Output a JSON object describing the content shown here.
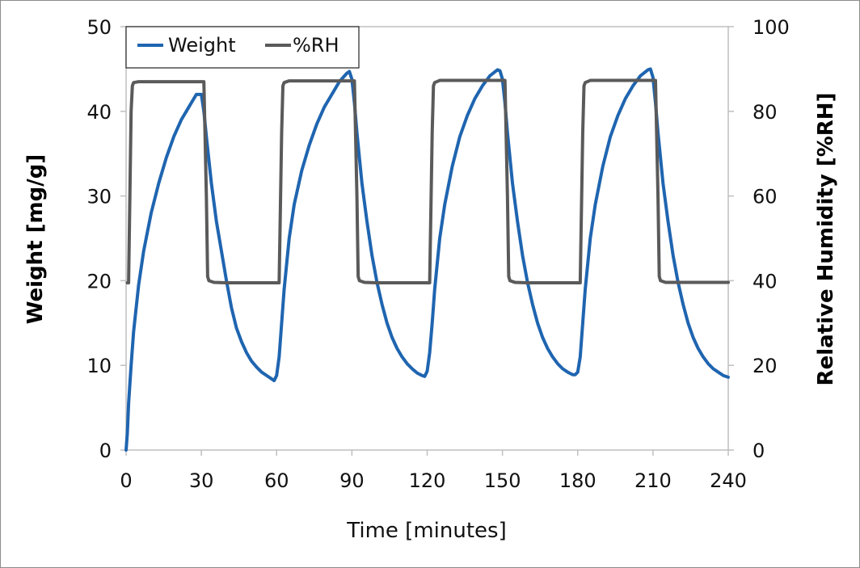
{
  "chart_data": {
    "type": "line",
    "title": "",
    "xlabel": "Time [minutes]",
    "ylabel": "Weight [mg/g]",
    "y2label": "Relative Humidity [%RH]",
    "xlim": [
      0,
      240
    ],
    "ylim": [
      0,
      50
    ],
    "y2lim": [
      0,
      100
    ],
    "xticks": [
      "0",
      "30",
      "60",
      "90",
      "120",
      "150",
      "180",
      "210",
      "240"
    ],
    "yticks": [
      "0",
      "10",
      "20",
      "30",
      "40",
      "50"
    ],
    "y2ticks": [
      "0",
      "20",
      "40",
      "60",
      "80",
      "100"
    ],
    "legend_position": "top-left",
    "grid": false,
    "series": [
      {
        "name": "Weight",
        "axis": "left",
        "color": "#1f65b0",
        "x": [
          0,
          0.5,
          1,
          2,
          3,
          5,
          7,
          10,
          13,
          16,
          19,
          22,
          25,
          28,
          30,
          31,
          32,
          34,
          36,
          38,
          40,
          42,
          44,
          46,
          48,
          50,
          52,
          54,
          56,
          58,
          59,
          60,
          61,
          62,
          63,
          65,
          67,
          70,
          73,
          76,
          79,
          82,
          85,
          88,
          89,
          90,
          91,
          92,
          94,
          96,
          98,
          100,
          102,
          104,
          106,
          108,
          110,
          112,
          114,
          116,
          118,
          119,
          120,
          121,
          122,
          123,
          125,
          127,
          130,
          133,
          136,
          139,
          142,
          145,
          148,
          149,
          150,
          151,
          152,
          154,
          156,
          158,
          160,
          162,
          164,
          166,
          168,
          170,
          172,
          174,
          176,
          178,
          179,
          180,
          181,
          182,
          183,
          185,
          187,
          190,
          193,
          196,
          199,
          202,
          205,
          208,
          209,
          210,
          211,
          212,
          214,
          216,
          218,
          220,
          222,
          224,
          226,
          228,
          230,
          232,
          234,
          236,
          238,
          240
        ],
        "y": [
          0,
          2,
          5.5,
          10,
          14,
          19.5,
          23.5,
          28,
          31.5,
          34.5,
          37,
          39,
          40.5,
          42,
          42,
          40,
          37,
          31.5,
          27,
          23.5,
          20,
          16.8,
          14.4,
          12.8,
          11.5,
          10.5,
          9.8,
          9.2,
          8.8,
          8.4,
          8.2,
          8.8,
          11,
          15,
          19,
          25,
          29,
          33,
          36,
          38.5,
          40.5,
          42,
          43.5,
          44.5,
          44.7,
          43.8,
          41,
          37.5,
          31.5,
          27,
          23,
          19.8,
          17.2,
          15,
          13.3,
          12,
          11,
          10.2,
          9.6,
          9.1,
          8.8,
          8.7,
          9.3,
          11.5,
          15,
          19,
          25,
          29,
          33.5,
          37,
          39.5,
          41.5,
          43,
          44.2,
          44.9,
          44.8,
          43.8,
          41,
          37.5,
          31.5,
          27,
          23,
          19.8,
          17.2,
          15,
          13.3,
          12,
          11,
          10.2,
          9.6,
          9.2,
          8.9,
          8.9,
          9.2,
          11,
          15,
          19,
          25,
          29,
          33.5,
          37,
          39.5,
          41.5,
          43,
          44.2,
          44.9,
          45,
          44,
          41,
          37.5,
          31.5,
          27,
          23,
          19.8,
          17.2,
          15,
          13.3,
          12,
          11,
          10.2,
          9.6,
          9.2,
          8.8,
          8.6
        ]
      },
      {
        "name": "%RH",
        "axis": "right",
        "color": "#5a5a5a",
        "x": [
          0.5,
          1,
          2,
          2.5,
          3,
          5,
          30,
          31,
          32,
          32.5,
          33,
          35,
          40,
          60,
          61,
          62,
          62.5,
          63,
          65,
          90,
          91,
          92,
          92.5,
          93,
          95,
          100,
          120,
          121,
          122,
          122.5,
          123,
          125,
          150,
          151,
          152,
          152.5,
          153,
          155,
          160,
          180,
          181,
          182,
          182.5,
          183,
          185,
          210,
          211,
          212,
          212.5,
          213,
          215,
          220,
          240
        ],
        "y": [
          39.5,
          39.5,
          80,
          86,
          86.8,
          87,
          87,
          87,
          60,
          41,
          40,
          39.6,
          39.5,
          39.5,
          39.5,
          75,
          86,
          86.8,
          87.2,
          87.2,
          87.2,
          60,
          41,
          40,
          39.6,
          39.5,
          39.5,
          39.5,
          75,
          86,
          86.8,
          87.3,
          87.3,
          87.3,
          60,
          41,
          40,
          39.6,
          39.5,
          39.5,
          39.5,
          75,
          86,
          86.8,
          87.3,
          87.3,
          87.3,
          60,
          41,
          40,
          39.6,
          39.6,
          39.6
        ]
      }
    ]
  }
}
